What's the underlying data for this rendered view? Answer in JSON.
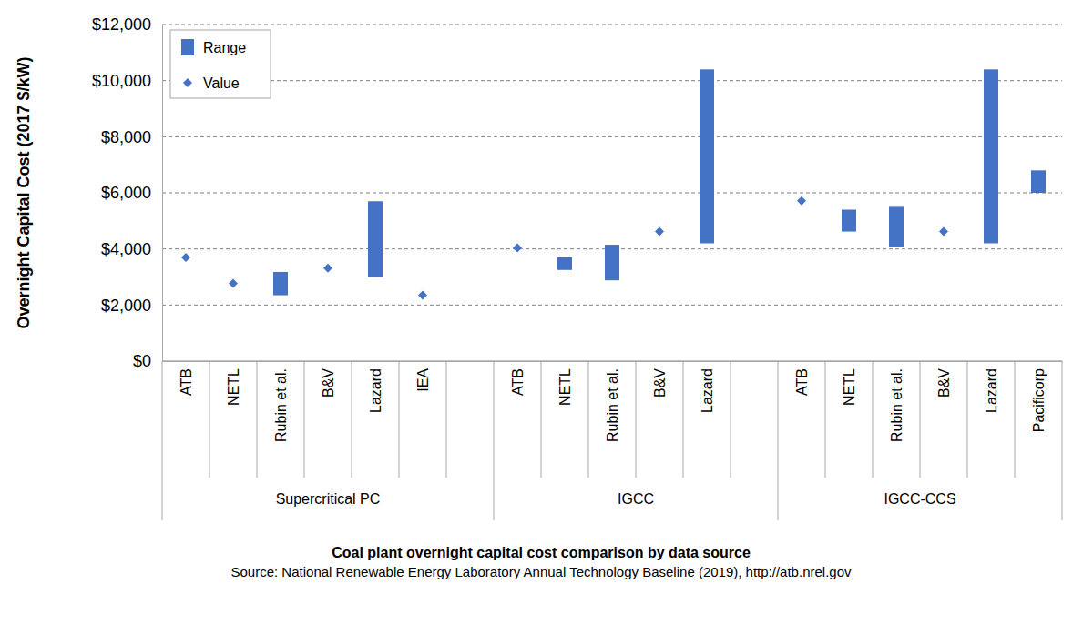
{
  "chart_data": {
    "type": "range",
    "title": "Coal plant overnight capital cost comparison by data source",
    "subtitle": "Source: National Renewable Energy Laboratory Annual Technology Baseline (2019), http://atb.nrel.gov",
    "y_label": "Overnight Capital Cost (2017 $/kW)",
    "categories": [
      "ATB",
      "NETL",
      "Rubin et al.",
      "B&V",
      "Lazard",
      "IEA",
      null,
      "ATB",
      "NETL",
      "Rubin et al.",
      "B&V",
      "Lazard",
      null,
      "ATB",
      "NETL",
      "Rubin et al.",
      "B&V",
      "Lazard",
      "Pacificorp"
    ],
    "category_groups": [
      "Supercritical PC",
      "Supercritical PC",
      "Supercritical PC",
      "Supercritical PC",
      "Supercritical PC",
      "Supercritical PC",
      "Supercritical PC",
      "IGCC",
      "IGCC",
      "IGCC",
      "IGCC",
      "IGCC",
      "IGCC",
      "IGCC-CCS",
      "IGCC-CCS",
      "IGCC-CCS",
      "IGCC-CCS",
      "IGCC-CCS",
      "IGCC-CCS"
    ],
    "series": [
      {
        "name": "Range",
        "color": "#4472c4",
        "type": "range",
        "low": [
          null,
          null,
          2350,
          null,
          3000,
          null,
          null,
          null,
          3250,
          2880,
          null,
          4200,
          null,
          null,
          4620,
          4080,
          null,
          4200,
          6000
        ],
        "high": [
          null,
          null,
          3180,
          null,
          5700,
          null,
          null,
          null,
          3700,
          4150,
          null,
          10400,
          null,
          null,
          5400,
          5500,
          null,
          10400,
          6800
        ]
      },
      {
        "name": "Value",
        "color": "#4472c4",
        "type": "point",
        "marker": "diamond",
        "values": [
          3700,
          2770,
          null,
          3320,
          null,
          2350,
          null,
          4040,
          null,
          null,
          4620,
          null,
          null,
          5720,
          null,
          null,
          4620,
          null,
          null
        ]
      }
    ],
    "ylim": [
      0,
      12000
    ],
    "yticks": [
      {
        "value": 0,
        "label": "$0"
      },
      {
        "value": 2000,
        "label": "$2,000"
      },
      {
        "value": 4000,
        "label": "$4,000"
      },
      {
        "value": 6000,
        "label": "$6,000"
      },
      {
        "value": 8000,
        "label": "$8,000"
      },
      {
        "value": 10000,
        "label": "$10,000"
      },
      {
        "value": 12000,
        "label": "$12,000"
      }
    ],
    "grid": true,
    "legend": "top-left"
  }
}
